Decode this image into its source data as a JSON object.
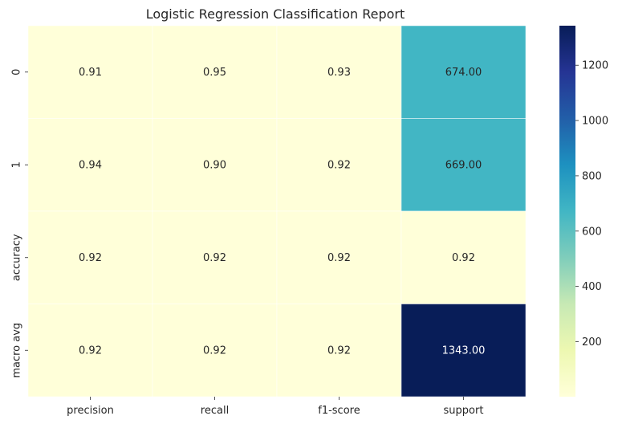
{
  "chart_data": {
    "type": "heatmap",
    "title": "Logistic Regression Classification Report",
    "xlabel": "",
    "ylabel": "",
    "columns": [
      "precision",
      "recall",
      "f1-score",
      "support"
    ],
    "rows": [
      "0",
      "1",
      "accuracy",
      "macro avg"
    ],
    "values": [
      [
        0.91,
        0.95,
        0.93,
        674.0
      ],
      [
        0.94,
        0.9,
        0.92,
        669.0
      ],
      [
        0.92,
        0.92,
        0.92,
        0.92
      ],
      [
        0.92,
        0.92,
        0.92,
        1343.0
      ]
    ],
    "cell_labels": [
      [
        "0.91",
        "0.95",
        "0.93",
        "674.00"
      ],
      [
        "0.94",
        "0.90",
        "0.92",
        "669.00"
      ],
      [
        "0.92",
        "0.92",
        "0.92",
        "0.92"
      ],
      [
        "0.92",
        "0.92",
        "0.92",
        "1343.00"
      ]
    ],
    "colormap": "YlGnBu",
    "color_range": [
      0.9,
      1343.0
    ],
    "colorbar_ticks": [
      "200",
      "400",
      "600",
      "800",
      "1000",
      "1200"
    ],
    "colorbar_tick_values": [
      200,
      400,
      600,
      800,
      1000,
      1200
    ],
    "grid_lines_color": "#ffffff"
  }
}
